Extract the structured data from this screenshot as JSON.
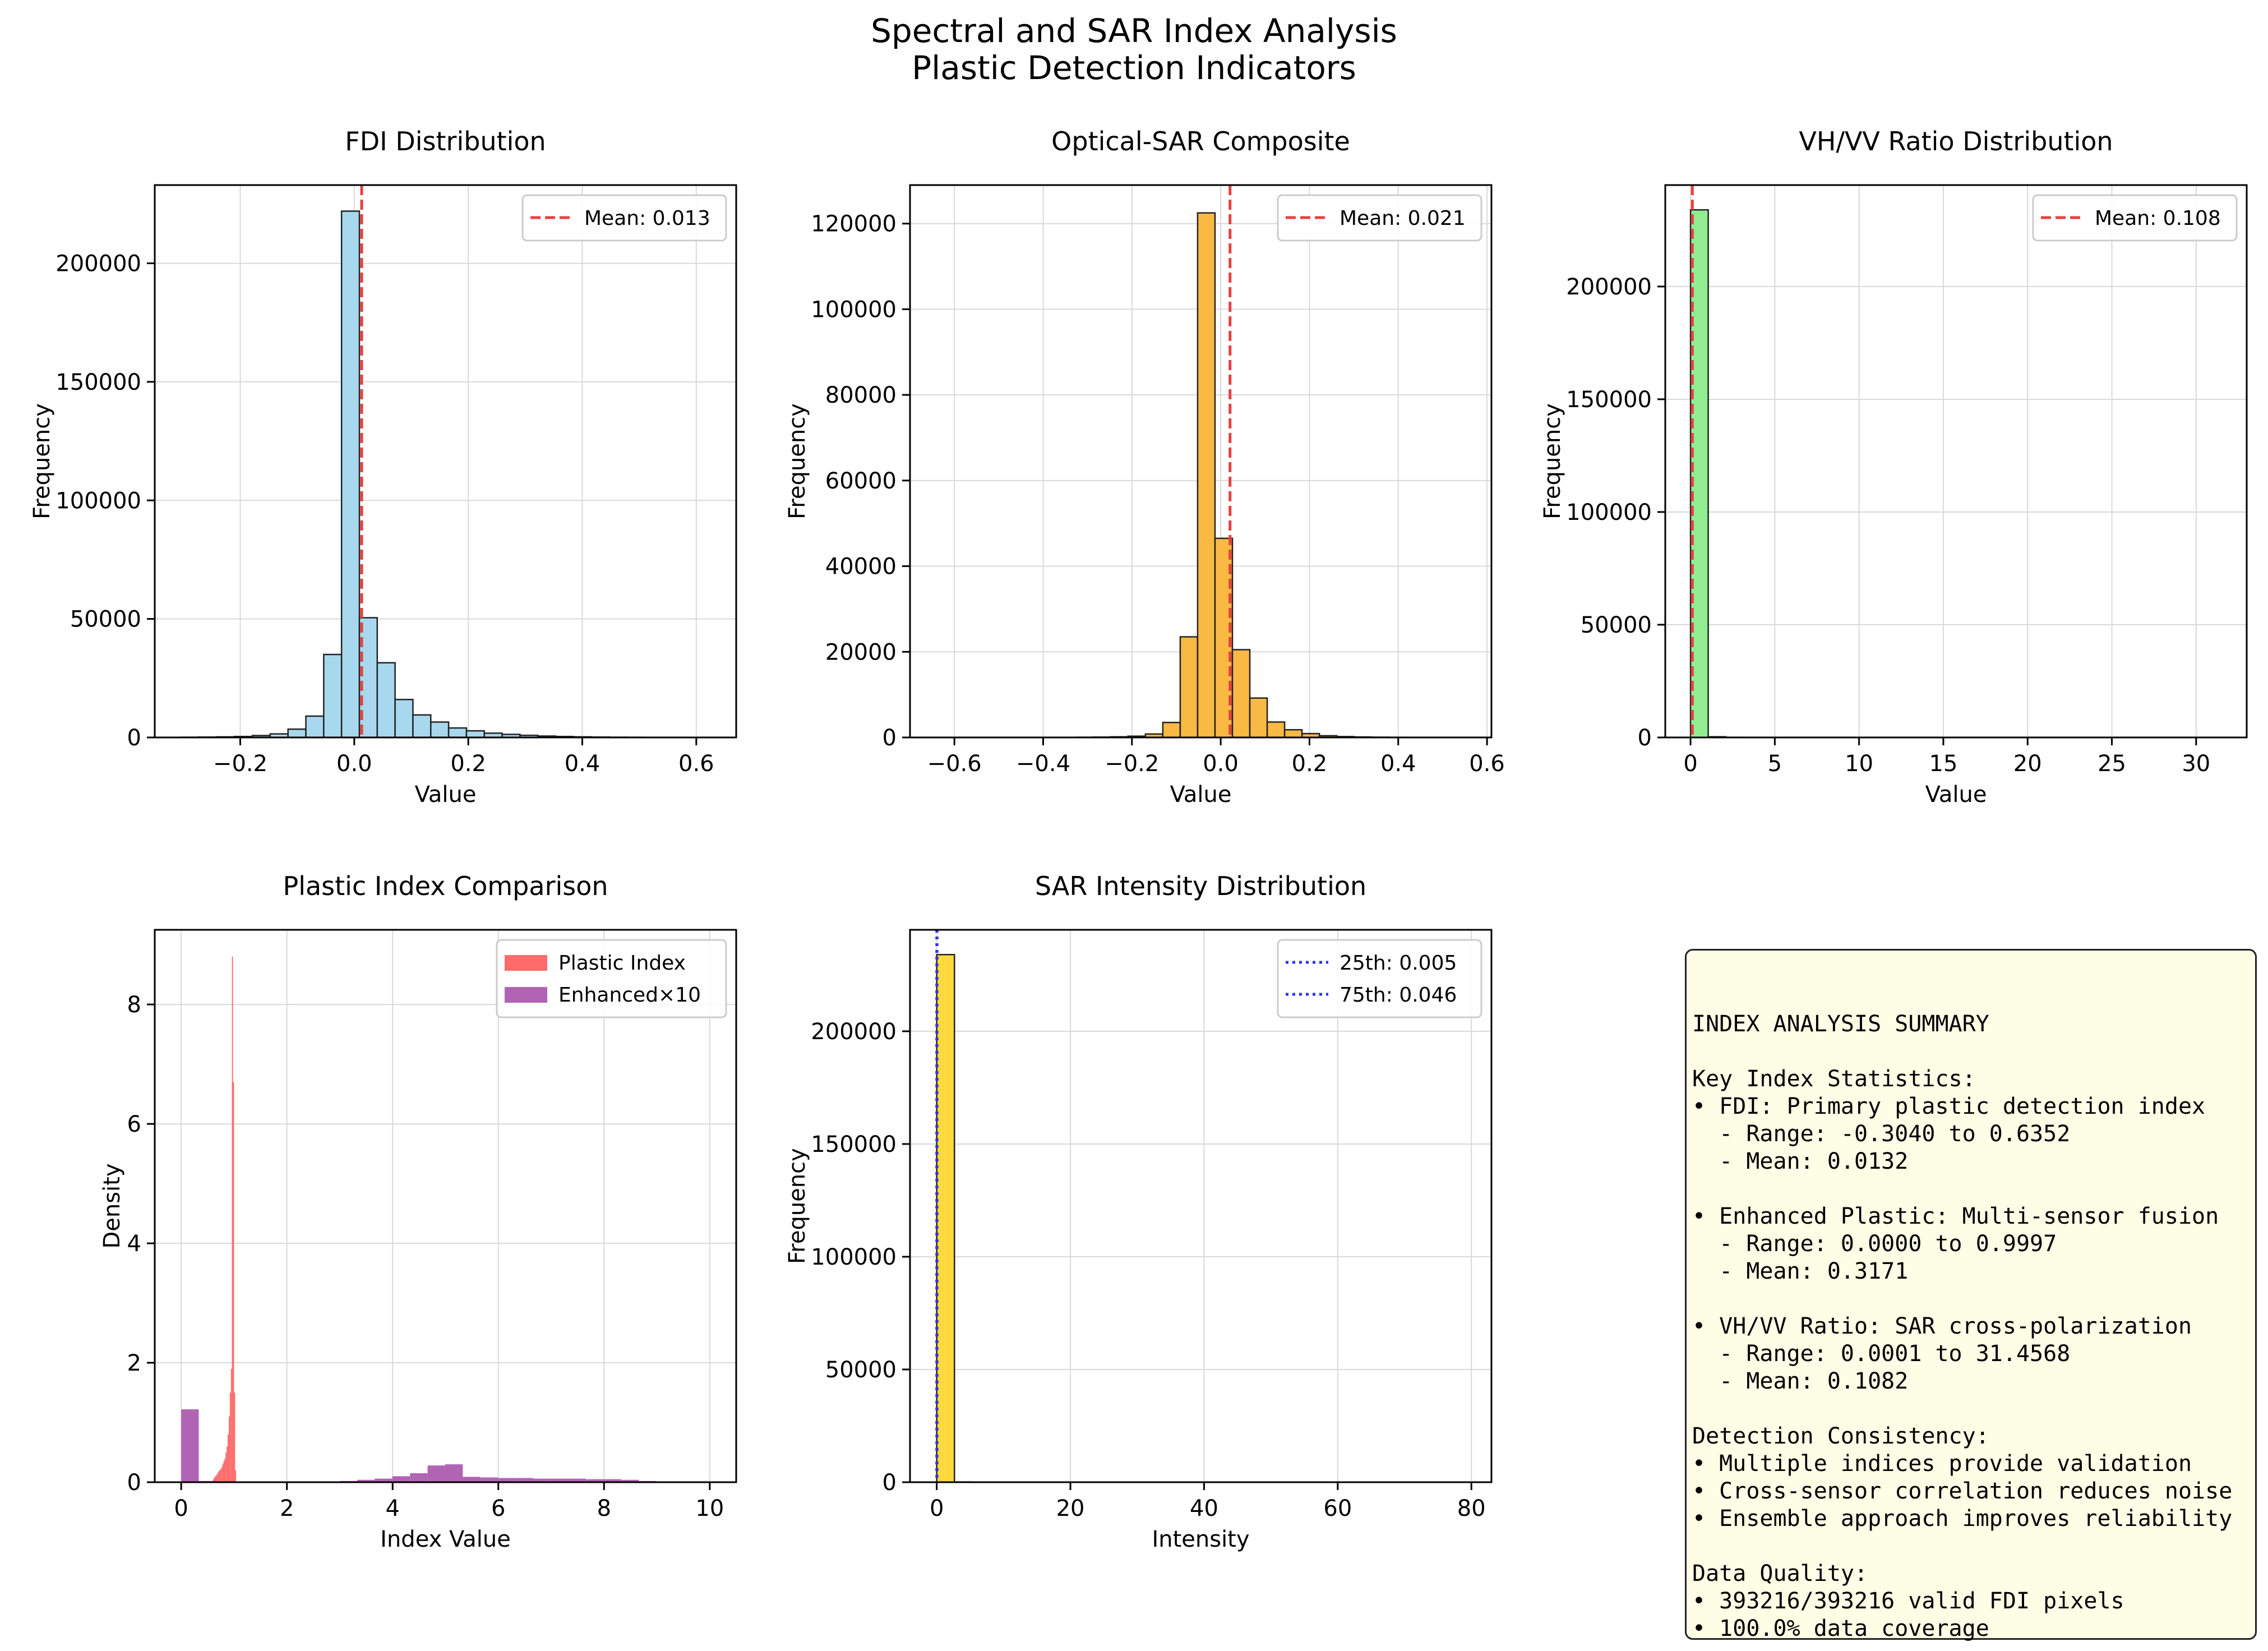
{
  "figure": {
    "title_line1": "Spectral and SAR Index Analysis",
    "title_line2": "Plastic Detection Indicators"
  },
  "colors": {
    "fdi": "#a8d8ee",
    "optical_sar": "#f9b943",
    "ratio": "#90ee90",
    "plastic": "#ff6b6b",
    "enhanced": "#b264b4",
    "sar": "#ffd83d",
    "mean_line": "#e84040",
    "quantile_line": "#3232e6"
  },
  "chart_data": [
    {
      "id": "fdi",
      "type": "bar",
      "title": "FDI Distribution",
      "xlabel": "Value",
      "ylabel": "Frequency",
      "xlim": [
        -0.35,
        0.67
      ],
      "ylim": [
        0,
        233000
      ],
      "xticks": [
        -0.2,
        0.0,
        0.2,
        0.4,
        0.6
      ],
      "xtick_labels": [
        "−0.2",
        "0.0",
        "0.2",
        "0.4",
        "0.6"
      ],
      "yticks": [
        0,
        50000,
        100000,
        150000,
        200000
      ],
      "ytick_labels": [
        "0",
        "50000",
        "100000",
        "150000",
        "200000"
      ],
      "bin_start": -0.304,
      "bin_width": 0.0313,
      "values": [
        100,
        150,
        250,
        400,
        800,
        1500,
        3500,
        9000,
        35000,
        222000,
        50500,
        31500,
        16000,
        9500,
        6500,
        4000,
        2800,
        1800,
        1300,
        900,
        600,
        400,
        250,
        150,
        100,
        80,
        50,
        30,
        20,
        10
      ],
      "mean_line": {
        "x": 0.013,
        "label": "Mean: 0.013"
      },
      "legend": {
        "position": "upper right",
        "entries": [
          "Mean: 0.013"
        ]
      }
    },
    {
      "id": "optical_sar",
      "type": "bar",
      "title": "Optical-SAR Composite",
      "xlabel": "Value",
      "ylabel": "Frequency",
      "xlim": [
        -0.7,
        0.61
      ],
      "ylim": [
        0,
        129000
      ],
      "xticks": [
        -0.6,
        -0.4,
        -0.2,
        0.0,
        0.2,
        0.4,
        0.6
      ],
      "xtick_labels": [
        "−0.6",
        "−0.4",
        "−0.2",
        "0.0",
        "0.2",
        "0.4",
        "0.6"
      ],
      "yticks": [
        0,
        20000,
        40000,
        60000,
        80000,
        100000,
        120000
      ],
      "ytick_labels": [
        "0",
        "20000",
        "40000",
        "60000",
        "80000",
        "100000",
        "120000"
      ],
      "bin_start": -0.64,
      "bin_width": 0.0392,
      "values": [
        10,
        10,
        10,
        10,
        10,
        20,
        20,
        30,
        50,
        80,
        150,
        300,
        800,
        3500,
        23500,
        122500,
        46500,
        20500,
        9200,
        3600,
        1800,
        900,
        400,
        200,
        100,
        60,
        40,
        20,
        10,
        10
      ],
      "mean_line": {
        "x": 0.021,
        "label": "Mean: 0.021"
      },
      "legend": {
        "position": "upper right",
        "entries": [
          "Mean: 0.021"
        ]
      }
    },
    {
      "id": "ratio",
      "type": "bar",
      "title": "VH/VV Ratio Distribution",
      "xlabel": "Value",
      "ylabel": "Frequency",
      "xlim": [
        -1.5,
        33
      ],
      "ylim": [
        0,
        245000
      ],
      "xticks": [
        0,
        5,
        10,
        15,
        20,
        25,
        30
      ],
      "xtick_labels": [
        "0",
        "5",
        "10",
        "15",
        "20",
        "25",
        "30"
      ],
      "yticks": [
        0,
        50000,
        100000,
        150000,
        200000
      ],
      "ytick_labels": [
        "0",
        "50000",
        "100000",
        "150000",
        "200000"
      ],
      "bin_start": 0.0001,
      "bin_width": 1.0486,
      "values": [
        234000,
        300,
        80,
        40,
        20,
        10,
        10,
        5,
        5,
        5,
        5,
        5,
        5,
        5,
        5,
        5,
        5,
        5,
        5,
        5,
        5,
        5,
        5,
        5,
        5,
        5,
        5,
        5,
        5,
        5
      ],
      "mean_line": {
        "x": 0.108,
        "label": "Mean: 0.108"
      },
      "legend": {
        "position": "upper right",
        "entries": [
          "Mean: 0.108"
        ]
      }
    },
    {
      "id": "plastic",
      "type": "bar",
      "title": "Plastic Index Comparison",
      "xlabel": "Index Value",
      "ylabel": "Density",
      "xlim": [
        -0.5,
        10.5
      ],
      "ylim": [
        0,
        9.25
      ],
      "xticks": [
        0,
        2,
        4,
        6,
        8,
        10
      ],
      "xtick_labels": [
        "0",
        "2",
        "4",
        "6",
        "8",
        "10"
      ],
      "yticks": [
        0,
        2,
        4,
        6,
        8
      ],
      "ytick_labels": [
        "0",
        "2",
        "4",
        "6",
        "8"
      ],
      "series": [
        {
          "name": "Plastic Index",
          "bin_start": 0.6,
          "bin_width": 0.02,
          "values": [
            0.05,
            0.08,
            0.1,
            0.12,
            0.15,
            0.18,
            0.2,
            0.22,
            0.25,
            0.3,
            0.35,
            0.4,
            0.5,
            0.6,
            0.8,
            1.1,
            1.5,
            1.9,
            8.8,
            6.7,
            1.5,
            0.2
          ]
        },
        {
          "name": "Enhanced×10",
          "bin_start": 0.0,
          "bin_width": 0.333,
          "values": [
            1.22,
            0.02,
            0.01,
            0.01,
            0.01,
            0.01,
            0.01,
            0.01,
            0.01,
            0.02,
            0.04,
            0.06,
            0.1,
            0.15,
            0.28,
            0.3,
            0.09,
            0.08,
            0.07,
            0.07,
            0.06,
            0.06,
            0.06,
            0.05,
            0.05,
            0.04,
            0.02,
            0.01,
            0.01,
            0.01
          ]
        }
      ],
      "legend": {
        "position": "upper right",
        "entries": [
          "Plastic Index",
          "Enhanced×10"
        ]
      }
    },
    {
      "id": "sar",
      "type": "bar",
      "title": "SAR Intensity Distribution",
      "xlabel": "Intensity",
      "ylabel": "Frequency",
      "xlim": [
        -4,
        83
      ],
      "ylim": [
        0,
        245000
      ],
      "xticks": [
        0,
        20,
        40,
        60,
        80
      ],
      "xtick_labels": [
        "0",
        "20",
        "40",
        "60",
        "80"
      ],
      "yticks": [
        0,
        50000,
        100000,
        150000,
        200000
      ],
      "ytick_labels": [
        "0",
        "50000",
        "100000",
        "150000",
        "200000"
      ],
      "bin_start": 0.0,
      "bin_width": 2.65,
      "values": [
        234000,
        100,
        30,
        10,
        5,
        5,
        5,
        5,
        5,
        5,
        5,
        5,
        5,
        5,
        5,
        5,
        5,
        5,
        5,
        5,
        5,
        5,
        5,
        5,
        5,
        5,
        5,
        5,
        5,
        5
      ],
      "quantile_lines": [
        {
          "x": 0.005,
          "label": "25th: 0.005"
        },
        {
          "x": 0.046,
          "label": "75th: 0.046"
        }
      ],
      "legend": {
        "position": "upper right",
        "entries": [
          "25th: 0.005",
          "75th: 0.046"
        ]
      }
    }
  ],
  "summary": {
    "title": "INDEX ANALYSIS SUMMARY",
    "lines": [
      "",
      "INDEX ANALYSIS SUMMARY",
      "",
      "Key Index Statistics:",
      "• FDI: Primary plastic detection index",
      "  - Range: -0.3040 to 0.6352",
      "  - Mean: 0.0132",
      "",
      "• Enhanced Plastic: Multi-sensor fusion",
      "  - Range: 0.0000 to 0.9997",
      "  - Mean: 0.3171",
      "",
      "• VH/VV Ratio: SAR cross-polarization",
      "  - Range: 0.0001 to 31.4568",
      "  - Mean: 0.1082",
      "",
      "Detection Consistency:",
      "• Multiple indices provide validation",
      "• Cross-sensor correlation reduces noise",
      "• Ensemble approach improves reliability",
      "",
      "Data Quality:",
      "• 393216/393216 valid FDI pixels",
      "• 100.0% data coverage"
    ]
  }
}
